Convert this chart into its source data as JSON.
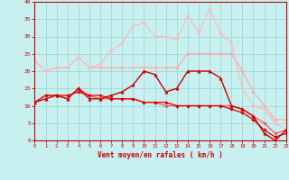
{
  "background_color": "#c8f0f0",
  "grid_color": "#a0d8d8",
  "xlabel": "Vent moyen/en rafales ( km/h )",
  "xlabel_color": "#cc0000",
  "tick_color": "#cc0000",
  "xlim": [
    0,
    23
  ],
  "ylim": [
    0,
    40
  ],
  "yticks": [
    0,
    5,
    10,
    15,
    20,
    25,
    30,
    35,
    40
  ],
  "xticks": [
    0,
    1,
    2,
    3,
    4,
    5,
    6,
    7,
    8,
    9,
    10,
    11,
    12,
    13,
    14,
    15,
    16,
    17,
    18,
    19,
    20,
    21,
    22,
    23
  ],
  "series": [
    {
      "color": "#ffaaaa",
      "alpha": 1.0,
      "linewidth": 0.9,
      "marker": "D",
      "markersize": 1.8,
      "data_x": [
        0,
        1,
        2,
        3,
        4,
        5,
        6,
        7,
        8,
        9,
        10,
        11,
        12,
        13,
        14,
        15,
        16,
        17,
        18,
        19,
        20,
        21,
        22,
        23
      ],
      "data_y": [
        23,
        20,
        21,
        21,
        24,
        21,
        21,
        21,
        21,
        21,
        21,
        21,
        21,
        21,
        25,
        25,
        25,
        25,
        25,
        20,
        14,
        10,
        6,
        6
      ]
    },
    {
      "color": "#ffbbbb",
      "alpha": 1.0,
      "linewidth": 0.9,
      "marker": "D",
      "markersize": 1.8,
      "data_x": [
        0,
        1,
        2,
        3,
        4,
        5,
        6,
        7,
        8,
        9,
        10,
        11,
        12,
        13,
        14,
        15,
        16,
        17,
        18,
        19,
        20,
        21,
        22,
        23
      ],
      "data_y": [
        23,
        20,
        21,
        21,
        24,
        21,
        22,
        26,
        28,
        33,
        34,
        30,
        30,
        29,
        36,
        31,
        38,
        31,
        28,
        15,
        10,
        9,
        5,
        3
      ]
    },
    {
      "color": "#ff5555",
      "alpha": 1.0,
      "linewidth": 0.9,
      "marker": "D",
      "markersize": 1.8,
      "data_x": [
        0,
        1,
        2,
        3,
        4,
        5,
        6,
        7,
        8,
        9,
        10,
        11,
        12,
        13,
        14,
        15,
        16,
        17,
        18,
        19,
        20,
        21,
        22,
        23
      ],
      "data_y": [
        11,
        13,
        13,
        12,
        15,
        13,
        12,
        12,
        12,
        12,
        11,
        11,
        10,
        10,
        10,
        10,
        10,
        10,
        10,
        9,
        7,
        5,
        2,
        3
      ]
    },
    {
      "color": "#cc0000",
      "alpha": 1.0,
      "linewidth": 1.0,
      "marker": "^",
      "markersize": 2.5,
      "data_x": [
        0,
        1,
        2,
        3,
        4,
        5,
        6,
        7,
        8,
        9,
        10,
        11,
        12,
        13,
        14,
        15,
        16,
        17,
        18,
        19,
        20,
        21,
        22,
        23
      ],
      "data_y": [
        11,
        12,
        13,
        12,
        15,
        12,
        12,
        13,
        14,
        16,
        20,
        19,
        14,
        15,
        20,
        20,
        20,
        18,
        10,
        9,
        7,
        2,
        0,
        3
      ]
    },
    {
      "color": "#dd0000",
      "alpha": 1.0,
      "linewidth": 0.9,
      "marker": "D",
      "markersize": 1.8,
      "data_x": [
        0,
        1,
        2,
        3,
        4,
        5,
        6,
        7,
        8,
        9,
        10,
        11,
        12,
        13,
        14,
        15,
        16,
        17,
        18,
        19,
        20,
        21,
        22,
        23
      ],
      "data_y": [
        11,
        13,
        13,
        13,
        14,
        13,
        13,
        12,
        12,
        12,
        11,
        11,
        11,
        10,
        10,
        10,
        10,
        10,
        9,
        8,
        6,
        3,
        1,
        2
      ]
    }
  ]
}
